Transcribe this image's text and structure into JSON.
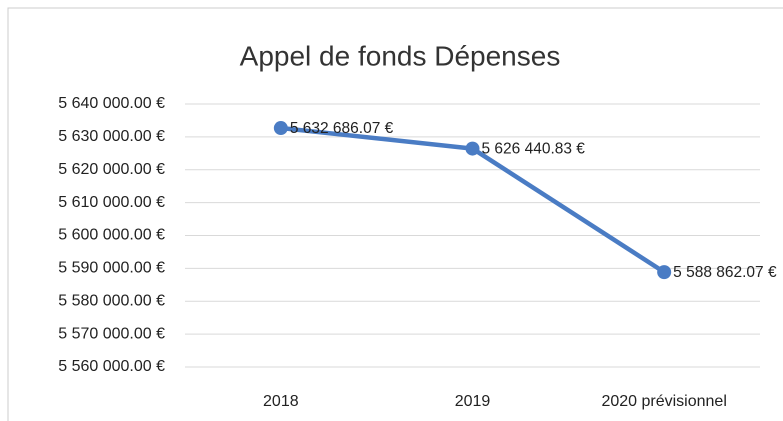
{
  "chart_data": {
    "type": "line",
    "title": "Appel de fonds Dépenses",
    "categories": [
      "2018",
      "2019",
      "2020 prévisionnel"
    ],
    "values": [
      5632686.07,
      5626440.83,
      5588862.07
    ],
    "value_labels": [
      "5 632 686.07 €",
      "5 626 440.83 €",
      "5 588 862.07 €"
    ],
    "color": "#4a7cc4",
    "ylim": [
      5560000,
      5640000
    ],
    "yticks": [
      {
        "value": 5560000,
        "label": "5 560 000.00 €"
      },
      {
        "value": 5570000,
        "label": "5 570 000.00 €"
      },
      {
        "value": 5580000,
        "label": "5 580 000.00 €"
      },
      {
        "value": 5590000,
        "label": "5 590 000.00 €"
      },
      {
        "value": 5600000,
        "label": "5 600 000.00 €"
      },
      {
        "value": 5610000,
        "label": "5 610 000.00 €"
      },
      {
        "value": 5620000,
        "label": "5 620 000.00 €"
      },
      {
        "value": 5630000,
        "label": "5 630 000.00 €"
      },
      {
        "value": 5640000,
        "label": "5 640 000.00 €"
      }
    ],
    "grid": true
  }
}
